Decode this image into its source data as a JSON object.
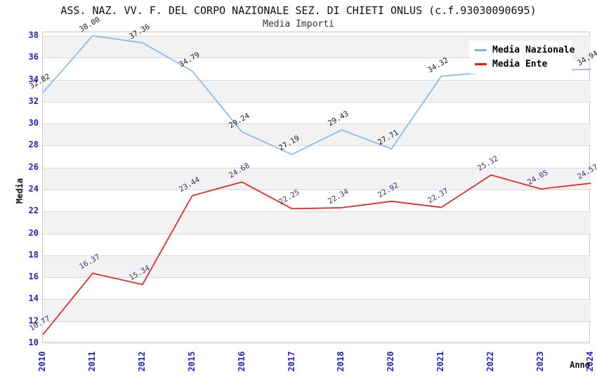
{
  "header": {
    "title": "ASS. NAZ. VV. F. DEL CORPO NAZIONALE SEZ. DI CHIETI ONLUS (c.f.93030090695)",
    "subtitle": "Media Importi"
  },
  "legend": {
    "items": [
      {
        "label": "Media Nazionale",
        "color": "#7fb2e5"
      },
      {
        "label": "Media Ente",
        "color": "#ee1111"
      }
    ]
  },
  "colors": {
    "tick_label": "#2323cd",
    "grid_band": "#f2f2f2",
    "gridline": "#dadada",
    "plot_border": "#c9c9c9",
    "blue_series": "#8ab8e8",
    "red_series": "#e62222",
    "blue_series_label": "#1a1a1a",
    "red_series_label": "#333377"
  },
  "chart_data": {
    "type": "line",
    "title": "ASS. NAZ. VV. F. DEL CORPO NAZIONALE SEZ. DI CHIETI ONLUS (c.f.93030090695)",
    "subtitle": "Media Importi",
    "xlabel": "Anno",
    "ylabel": "Media",
    "ylim": [
      10,
      38
    ],
    "ytick_step": 2,
    "grid": "alternating-bands",
    "legend_position": "top-right-inside",
    "categories": [
      "2010",
      "2011",
      "2012",
      "2015",
      "2016",
      "2017",
      "2018",
      "2020",
      "2021",
      "2022",
      "2023",
      "2024"
    ],
    "series": [
      {
        "name": "Media Nazionale",
        "color": "#8ab8e8",
        "label_color": "#1a1a1a",
        "values": [
          32.82,
          38.0,
          37.36,
          34.79,
          29.24,
          27.19,
          29.43,
          27.71,
          34.32,
          34.7,
          34.85,
          34.94
        ],
        "labels": [
          "32.82",
          "38.00",
          "37.36",
          "34.79",
          "29.24",
          "27.19",
          "29.43",
          "27.71",
          "34.32",
          null,
          null,
          "34.94"
        ]
      },
      {
        "name": "Media Ente",
        "color": "#e62222",
        "label_color": "#333377",
        "values": [
          10.77,
          16.37,
          15.34,
          23.44,
          24.68,
          22.25,
          22.34,
          22.92,
          22.37,
          25.32,
          24.05,
          24.57
        ],
        "labels": [
          "10.77",
          "16.37",
          "15.34",
          "23.44",
          "24.68",
          "22.25",
          "22.34",
          "22.92",
          "22.37",
          "25.32",
          "24.05",
          "24.57"
        ]
      }
    ]
  }
}
